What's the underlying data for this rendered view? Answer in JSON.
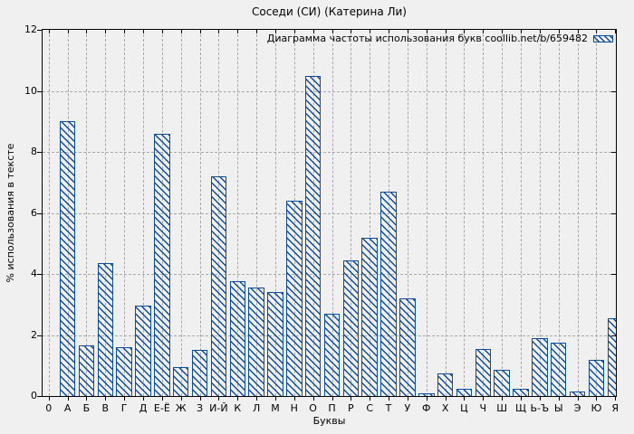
{
  "chart_data": {
    "type": "bar",
    "title": "Соседи (СИ) (Катерина Ли)",
    "legend": "Диаграмма частоты использования букв coollib.net/b/659482",
    "legend_position": "top-right-inside",
    "xlabel": "Буквы",
    "ylabel": "% использования в тексте",
    "origin_tick_label": "0",
    "categories": [
      "А",
      "Б",
      "В",
      "Г",
      "Д",
      "Е-Ё",
      "Ж",
      "З",
      "И-Й",
      "К",
      "Л",
      "М",
      "Н",
      "О",
      "П",
      "Р",
      "С",
      "Т",
      "У",
      "Ф",
      "Х",
      "Ц",
      "Ч",
      "Ш",
      "Щ",
      "Ь-Ъ",
      "Ы",
      "Э",
      "Ю",
      "Я"
    ],
    "values": [
      9.0,
      1.65,
      4.35,
      1.6,
      2.95,
      8.6,
      0.95,
      1.5,
      7.2,
      3.75,
      3.55,
      3.4,
      6.4,
      10.5,
      2.7,
      4.45,
      5.2,
      6.7,
      3.2,
      0.1,
      0.75,
      0.25,
      1.55,
      0.85,
      0.25,
      1.9,
      1.75,
      0.15,
      1.2,
      2.55
    ],
    "ylim": [
      0,
      12
    ],
    "yticks": [
      0,
      2,
      4,
      6,
      8,
      10,
      12
    ],
    "grid": "dashed",
    "colors": {
      "bar": "#0d4da0",
      "grid": "#a8a8a8",
      "axis": "#000000",
      "background": "#f0f0f0"
    }
  }
}
